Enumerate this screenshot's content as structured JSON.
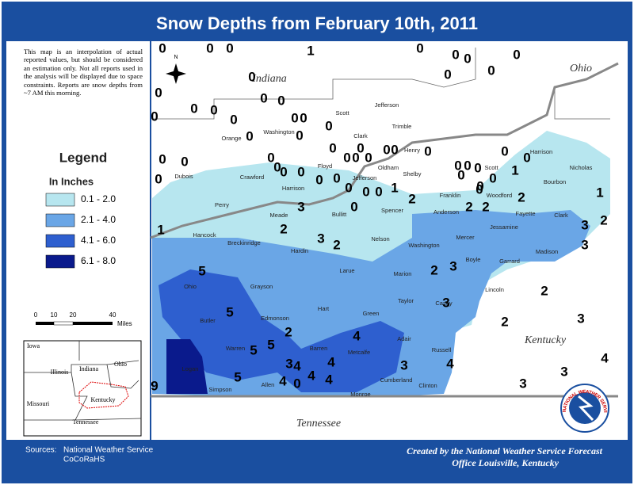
{
  "header": {
    "title": "Snow Depths from February 10th, 2011"
  },
  "note": "This map is an interpolation of actual reported values, but should be considered an estimation only. Not all reports used in the analysis will be displayed due to space constraints. Reports are snow depths from ~7 AM this morning.",
  "legend": {
    "title": "Legend",
    "subtitle": "In Inches",
    "items": [
      {
        "label": "0.1 - 2.0",
        "color": "#b7e6ef"
      },
      {
        "label": "2.1 - 4.0",
        "color": "#6aa6e6"
      },
      {
        "label": "4.1 - 6.0",
        "color": "#2e5fcf"
      },
      {
        "label": "6.1 - 8.0",
        "color": "#0a1a8c"
      }
    ]
  },
  "scale": {
    "ticks": [
      "0",
      "10",
      "20",
      "40"
    ],
    "unit": "Miles"
  },
  "north": "N",
  "states": [
    "Indiana",
    "Ohio",
    "Kentucky",
    "Tennessee"
  ],
  "counties": [
    "Orange",
    "Washington",
    "Scott",
    "Jefferson",
    "Clark",
    "Trimble",
    "Henry",
    "Oldham",
    "Floyd",
    "Harrison",
    "Dubois",
    "Crawford",
    "Perry",
    "Jefferson",
    "Shelby",
    "Franklin",
    "Scott",
    "Harrison",
    "Nicholas",
    "Bourbon",
    "Woodford",
    "Fayette",
    "Clark",
    "Bullitt",
    "Spencer",
    "Anderson",
    "Jessamine",
    "Meade",
    "Hancock",
    "Breckinridge",
    "Hardin",
    "Nelson",
    "Washington",
    "Mercer",
    "Madison",
    "Garrard",
    "Boyle",
    "Ohio",
    "Grayson",
    "Larue",
    "Marion",
    "Lincoln",
    "Taylor",
    "Casey",
    "Hart",
    "Butler",
    "Edmonson",
    "Green",
    "Adair",
    "Russell",
    "Metcalfe",
    "Barren",
    "Warren",
    "Logan",
    "Simpson",
    "Allen",
    "Monroe",
    "Cumberland",
    "Clinton"
  ],
  "observations": [
    0,
    0,
    0,
    1,
    0,
    0,
    0,
    0,
    0,
    0,
    0,
    0,
    0,
    0,
    0,
    0,
    0,
    0,
    0,
    0,
    0,
    0,
    0,
    0,
    0,
    0,
    0,
    0,
    0,
    0,
    0,
    0,
    0,
    0,
    0,
    0,
    0,
    0,
    0,
    0,
    0,
    0,
    0,
    0,
    0,
    0,
    1,
    2,
    0,
    0,
    0,
    0,
    0,
    1,
    0,
    2,
    2,
    2,
    1,
    2,
    3,
    3,
    0,
    3,
    1,
    2,
    3,
    2,
    5,
    3,
    2,
    2,
    3,
    2,
    3,
    5,
    2,
    4,
    5,
    5,
    3,
    4,
    4,
    4,
    3,
    4,
    3,
    5,
    4,
    0,
    4,
    4,
    3,
    9
  ],
  "inset": {
    "labels": [
      "Iowa",
      "Illinois",
      "Indiana",
      "Ohio",
      "Missouri",
      "Kentucky",
      "Tennessee"
    ]
  },
  "footer": {
    "sources_label": "Sources:",
    "sources": [
      "National Weather Service",
      "CoCoRaHS"
    ],
    "credit": [
      "Created by the National Weather Service Forecast",
      "Office Louisville, Kentucky"
    ]
  },
  "logo": "NATIONAL WEATHER SERVICE"
}
